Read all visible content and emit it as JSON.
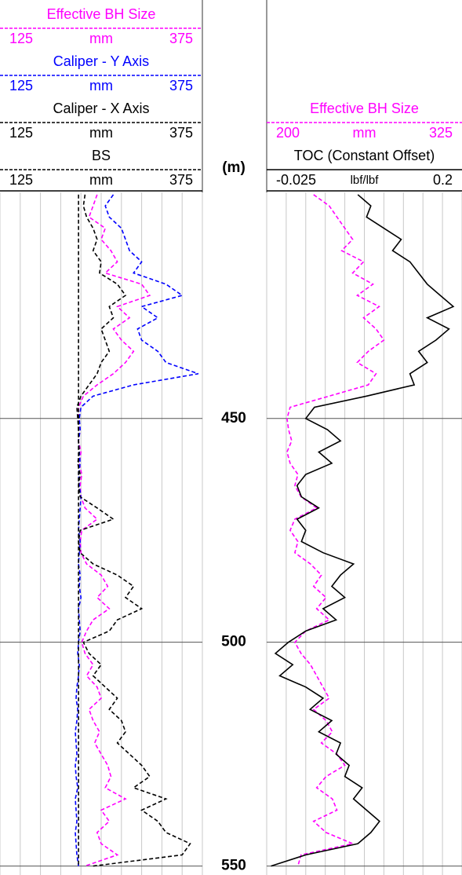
{
  "chart_data": {
    "type": "well_log",
    "y_label": "(m)",
    "ylim": [
      399.5,
      552
    ],
    "yticks": [
      450,
      500,
      550
    ],
    "y": [
      400,
      402.5,
      405,
      407.5,
      410,
      412.5,
      415,
      417.5,
      420,
      422.5,
      425,
      427.5,
      430,
      432.5,
      435,
      437.5,
      440,
      442.5,
      445,
      447.5,
      450,
      452.5,
      455,
      457.5,
      460,
      462.5,
      465,
      467.5,
      470,
      472.5,
      475,
      477.5,
      480,
      482.5,
      485,
      487.5,
      490,
      492.5,
      495,
      497.5,
      500,
      502.5,
      505,
      507.5,
      510,
      512.5,
      515,
      517.5,
      520,
      522.5,
      525,
      527.5,
      530,
      532.5,
      535,
      537.5,
      540,
      542.5,
      545,
      547.5,
      550
    ],
    "tracks": [
      {
        "xticks": [
          125,
          150,
          175,
          200,
          225,
          250,
          275,
          300,
          325,
          350,
          375
        ],
        "series": [
          {
            "name": "Effective BH Size",
            "unit": "mm",
            "color": "#ff00ff",
            "line_style": "dashed",
            "xlim": [
              125,
              375
            ],
            "values": [
              245,
              240,
              235,
              255,
              250,
              262,
              270,
              255,
              300,
              310,
              270,
              285,
              265,
              275,
              290,
              280,
              265,
              245,
              228,
              222,
              222,
              224,
              222,
              225,
              223,
              226,
              224,
              225,
              230,
              245,
              226,
              224,
              225,
              232,
              250,
              258,
              245,
              260,
              240,
              232,
              226,
              230,
              240,
              232,
              245,
              250,
              235,
              240,
              248,
              242,
              250,
              258,
              262,
              255,
              280,
              250,
              260,
              245,
              250,
              270,
              230
            ]
          },
          {
            "name": "Caliper - Y Axis",
            "unit": "mm",
            "color": "#0000ff",
            "line_style": "dashed",
            "xlim": [
              125,
              375
            ],
            "values": [
              265,
              255,
              260,
              275,
              280,
              285,
              300,
              290,
              330,
              350,
              300,
              320,
              295,
              300,
              320,
              330,
              370,
              290,
              240,
              225,
              223,
              224,
              222,
              223,
              224,
              222,
              223,
              225,
              224,
              223,
              222,
              224,
              223,
              222,
              224,
              223,
              225,
              222,
              223,
              224,
              222,
              221,
              223,
              222,
              220,
              219,
              221,
              220,
              218,
              219,
              220,
              218,
              219,
              221,
              218,
              219,
              220,
              218,
              219,
              220,
              222
            ]
          },
          {
            "name": "Caliper - X Axis",
            "unit": "mm",
            "color": "#000000",
            "line_style": "dashed",
            "xlim": [
              125,
              375
            ],
            "values": [
              230,
              228,
              232,
              240,
              245,
              240,
              250,
              248,
              270,
              280,
              260,
              265,
              250,
              255,
              260,
              250,
              245,
              235,
              225,
              220,
              221,
              222,
              222,
              223,
              221,
              224,
              222,
              224,
              245,
              265,
              224,
              222,
              224,
              240,
              270,
              290,
              280,
              300,
              270,
              260,
              228,
              235,
              250,
              240,
              255,
              270,
              260,
              275,
              280,
              270,
              285,
              300,
              310,
              290,
              330,
              300,
              320,
              330,
              360,
              350,
              240
            ]
          },
          {
            "name": "BS",
            "unit": "mm",
            "color": "#000000",
            "line_style": "dashed",
            "xlim": [
              125,
              375
            ],
            "values": [
              222,
              222,
              222,
              222,
              222,
              222,
              222,
              222,
              222,
              222,
              222,
              222,
              222,
              222,
              222,
              222,
              222,
              222,
              222,
              222,
              222,
              222,
              222,
              222,
              222,
              222,
              222,
              222,
              222,
              222,
              222,
              222,
              222,
              222,
              222,
              222,
              222,
              222,
              222,
              222,
              222,
              222,
              222,
              222,
              222,
              222,
              222,
              222,
              222,
              222,
              222,
              222,
              222,
              222,
              222,
              222,
              222,
              222,
              222,
              222,
              222
            ]
          }
        ]
      },
      {
        "xticks": [
          200,
          212.5,
          225,
          237.5,
          250,
          262.5,
          275,
          287.5,
          300,
          312.5,
          325
        ],
        "series": [
          {
            "name": "Effective BH Size",
            "unit": "mm",
            "color": "#ff00ff",
            "line_style": "dashed",
            "xlim": [
              200,
              325
            ],
            "values": [
              230,
              240,
              245,
              250,
              255,
              248,
              262,
              255,
              268,
              258,
              272,
              262,
              270,
              275,
              265,
              258,
              270,
              265,
              240,
              215,
              213,
              214,
              216,
              213,
              215,
              220,
              218,
              222,
              232,
              218,
              215,
              220,
              218,
              228,
              235,
              230,
              238,
              232,
              240,
              225,
              218,
              222,
              228,
              232,
              236,
              240,
              230,
              238,
              242,
              235,
              245,
              250,
              238,
              232,
              242,
              245,
              230,
              238,
              255,
              222,
              220
            ]
          },
          {
            "name": "TOC (Constant Offset)",
            "unit": "lbf/lbf",
            "color": "#000000",
            "line_style": "solid",
            "xlim": [
              -0.025,
              0.2
            ],
            "values": [
              0.08,
              0.095,
              0.09,
              0.11,
              0.13,
              0.12,
              0.14,
              0.15,
              0.16,
              0.175,
              0.19,
              0.16,
              0.185,
              0.17,
              0.15,
              0.16,
              0.14,
              0.145,
              0.09,
              0.03,
              0.02,
              0.045,
              0.06,
              0.035,
              0.05,
              0.02,
              0.01,
              0.015,
              0.035,
              0.01,
              0.02,
              0.015,
              0.04,
              0.075,
              0.06,
              0.05,
              0.065,
              0.04,
              0.055,
              0.02,
              0.0,
              -0.015,
              0.005,
              -0.01,
              0.02,
              0.04,
              0.025,
              0.05,
              0.035,
              0.06,
              0.055,
              0.07,
              0.065,
              0.085,
              0.075,
              0.09,
              0.105,
              0.095,
              0.08,
              0.02,
              -0.02
            ]
          }
        ]
      }
    ]
  }
}
